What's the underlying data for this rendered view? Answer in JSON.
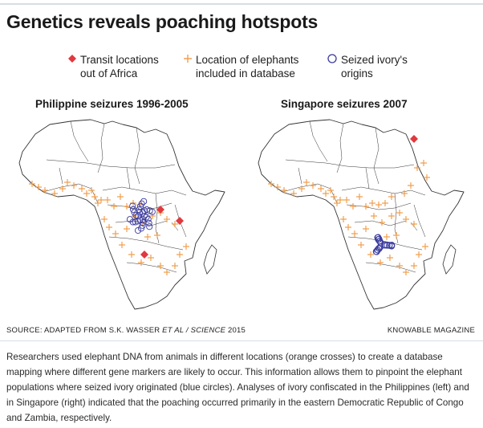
{
  "title": "Genetics reveals poaching hotspots",
  "legend": {
    "transit": {
      "label": "Transit locations\nout of Africa",
      "color": "#e0393e",
      "icon": "red-diamond-icon"
    },
    "elephants": {
      "label": "Location of elephants\nincluded in database",
      "color": "#f0a050",
      "icon": "orange-cross-icon"
    },
    "ivory": {
      "label": "Seized ivory's\norigins",
      "color": "#3a3a9e",
      "icon": "blue-circle-icon"
    }
  },
  "colors": {
    "outline": "#333333",
    "cross": "#f0a050",
    "diamond": "#e0393e",
    "circle": "#3a3a9e"
  },
  "panels": [
    {
      "title": "Philippine seizures 1996-2005"
    },
    {
      "title": "Singapore seizures 2007"
    }
  ],
  "source": {
    "prefix": "SOURCE: ADAPTED FROM S.K. WASSER ",
    "authors": "ET AL / SCIENCE",
    "year": " 2015"
  },
  "brand": "KNOWABLE MAGAZINE",
  "caption": "Researchers used elephant DNA from animals in different locations (orange crosses) to create a database mapping where different gene markers are likely to occur. This information allows them to pinpoint the elephant populations where seized ivory originated (blue circles). Analyses of ivory confiscated in the Philippines (left) and in Singapore (right) indicated that the poaching occurred primarily in the eastern Democratic Republic of Congo and Zambia, respectively."
}
